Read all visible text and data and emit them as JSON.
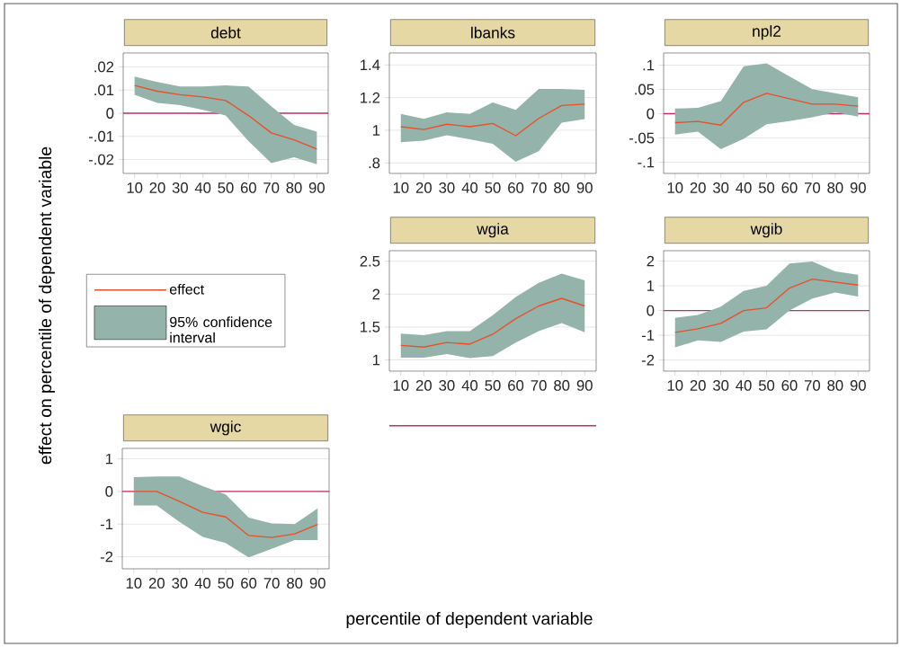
{
  "chart_data": [
    {
      "type": "line",
      "title": "debt",
      "xlabel": "percentile of dependent variable",
      "ylabel": "effect on percentile of dependent variable",
      "legend": "left",
      "grid": "y",
      "x": [
        10,
        20,
        30,
        40,
        50,
        60,
        70,
        80,
        90
      ],
      "xlim": [
        5,
        95
      ],
      "xticks": [
        10,
        20,
        30,
        40,
        50,
        60,
        70,
        80,
        90
      ],
      "ylim": [
        -0.026,
        0.026
      ],
      "yticks": [
        {
          "value": -0.02,
          "label": "-.02"
        },
        {
          "value": -0.01,
          "label": "-.01"
        },
        0,
        {
          "value": 0.01,
          "label": ".01"
        },
        {
          "value": 0.02,
          "label": ".02"
        }
      ],
      "series": [
        {
          "name": "effect",
          "color": "#e8502a",
          "values": [
            0.012,
            0.0095,
            0.008,
            0.007,
            0.0055,
            -0.001,
            -0.0085,
            -0.0115,
            -0.0155
          ]
        },
        {
          "name": "95% confidence interval",
          "color": "#93b3ab",
          "values": [
            null,
            null,
            null,
            null,
            null,
            null,
            null,
            null,
            null
          ],
          "lower": [
            0.008,
            0.0045,
            0.0035,
            0.0015,
            -0.001,
            -0.012,
            -0.0215,
            -0.019,
            -0.022
          ],
          "upper": [
            0.0158,
            0.0135,
            0.0115,
            0.0115,
            0.012,
            0.0115,
            0.003,
            -0.005,
            -0.008
          ]
        }
      ],
      "ref_lines": [
        {
          "axis": "y",
          "value": 0,
          "color": "#c0306a"
        }
      ]
    },
    {
      "type": "line",
      "title": "lbanks",
      "grid": "y",
      "x": [
        10,
        20,
        30,
        40,
        50,
        60,
        70,
        80,
        90
      ],
      "xlim": [
        5,
        95
      ],
      "xticks": [
        10,
        20,
        30,
        40,
        50,
        60,
        70,
        80,
        90
      ],
      "ylim": [
        0.736,
        1.473
      ],
      "yticks": [
        {
          "value": 0.8,
          "label": ".8"
        },
        1,
        1.2,
        1.4
      ],
      "series": [
        {
          "color": "#e8502a",
          "values": [
            1.022,
            1.005,
            1.037,
            1.022,
            1.042,
            0.967,
            1.073,
            1.152,
            1.16
          ]
        },
        {
          "color": "#93b3ab",
          "values": [
            null,
            null,
            null,
            null,
            null,
            null,
            null,
            null,
            null
          ],
          "lower": [
            0.927,
            0.936,
            0.969,
            0.945,
            0.917,
            0.807,
            0.872,
            1.046,
            1.068
          ],
          "upper": [
            1.1,
            1.07,
            1.11,
            1.1,
            1.17,
            1.125,
            1.253,
            1.253,
            1.248
          ]
        }
      ]
    },
    {
      "type": "line",
      "title": "npl2",
      "grid": "y",
      "x": [
        10,
        20,
        30,
        40,
        50,
        60,
        70,
        80,
        90
      ],
      "xlim": [
        5,
        95
      ],
      "xticks": [
        10,
        20,
        30,
        40,
        50,
        60,
        70,
        80,
        90
      ],
      "ylim": [
        -0.123,
        0.125
      ],
      "yticks": [
        {
          "value": -0.1,
          "label": "-.1"
        },
        {
          "value": -0.05,
          "label": "-.05"
        },
        0,
        {
          "value": 0.05,
          "label": ".05"
        },
        {
          "value": 0.1,
          "label": ".1"
        }
      ],
      "series": [
        {
          "color": "#e8502a",
          "values": [
            -0.0185,
            -0.016,
            -0.0235,
            0.0235,
            0.042,
            0.031,
            0.0198,
            0.0198,
            0.0155
          ]
        },
        {
          "color": "#93b3ab",
          "values": [
            null,
            null,
            null,
            null,
            null,
            null,
            null,
            null,
            null
          ],
          "lower": [
            -0.043,
            -0.037,
            -0.073,
            -0.052,
            -0.0216,
            -0.0154,
            -0.0074,
            0.003,
            -0.006
          ],
          "upper": [
            0.0105,
            0.012,
            0.026,
            0.0975,
            0.1037,
            0.077,
            0.0506,
            0.042,
            0.034
          ]
        }
      ],
      "ref_lines": [
        {
          "axis": "y",
          "value": 0,
          "color": "#c0306a"
        }
      ]
    },
    {
      "type": "line",
      "title": "wgia",
      "grid": "y",
      "x": [
        10,
        20,
        30,
        40,
        50,
        60,
        70,
        80,
        90
      ],
      "xlim": [
        5,
        95
      ],
      "xticks": [
        10,
        20,
        30,
        40,
        50,
        60,
        70,
        80,
        90
      ],
      "ylim": [
        0.83,
        2.66
      ],
      "yticks": [
        1,
        1.5,
        2,
        2.5
      ],
      "series": [
        {
          "color": "#e8502a",
          "values": [
            1.22,
            1.195,
            1.264,
            1.24,
            1.39,
            1.627,
            1.82,
            1.936,
            1.82
          ]
        },
        {
          "color": "#93b3ab",
          "values": [
            null,
            null,
            null,
            null,
            null,
            null,
            null,
            null,
            null
          ],
          "lower": [
            1.036,
            1.036,
            1.09,
            1.027,
            1.06,
            1.264,
            1.436,
            1.56,
            1.42
          ],
          "upper": [
            1.4,
            1.377,
            1.436,
            1.436,
            1.68,
            1.955,
            2.17,
            2.31,
            2.21
          ]
        }
      ],
      "ref_lines": [
        {
          "axis": "y",
          "value": 0,
          "color": "#c0306a"
        }
      ]
    },
    {
      "type": "line",
      "title": "wgib",
      "grid": "y",
      "x": [
        10,
        20,
        30,
        40,
        50,
        60,
        70,
        80,
        90
      ],
      "xlim": [
        5,
        95
      ],
      "xticks": [
        10,
        20,
        30,
        40,
        50,
        60,
        70,
        80,
        90
      ],
      "ylim": [
        -2.45,
        2.42
      ],
      "yticks": [
        -2,
        -1,
        0,
        1,
        2
      ],
      "series": [
        {
          "color": "#e8502a",
          "values": [
            -0.885,
            -0.74,
            -0.52,
            0,
            0.11,
            0.91,
            1.27,
            1.15,
            1.03
          ]
        },
        {
          "color": "#93b3ab",
          "values": [
            null,
            null,
            null,
            null,
            null,
            null,
            null,
            null,
            null
          ],
          "lower": [
            -1.49,
            -1.21,
            -1.27,
            -0.85,
            -0.76,
            0,
            0.485,
            0.727,
            0.57
          ],
          "upper": [
            -0.3,
            -0.18,
            0.16,
            0.79,
            1.0,
            1.9,
            1.98,
            1.58,
            1.45
          ]
        }
      ],
      "ref_lines": [
        {
          "axis": "y",
          "value": 0,
          "color": "#c0306a"
        }
      ]
    },
    {
      "type": "line",
      "title": "wgic",
      "grid": "y",
      "x": [
        10,
        20,
        30,
        40,
        50,
        60,
        70,
        80,
        90
      ],
      "xlim": [
        5,
        95
      ],
      "xticks": [
        10,
        20,
        30,
        40,
        50,
        60,
        70,
        80,
        90
      ],
      "ylim": [
        -2.37,
        1.32
      ],
      "yticks": [
        -2,
        -1,
        0,
        1
      ],
      "series": [
        {
          "color": "#e8502a",
          "values": [
            0,
            0,
            -0.31,
            -0.64,
            -0.78,
            -1.35,
            -1.41,
            -1.3,
            -1.01
          ]
        },
        {
          "color": "#93b3ab",
          "values": [
            null,
            null,
            null,
            null,
            null,
            null,
            null,
            null,
            null
          ],
          "lower": [
            -0.43,
            -0.43,
            -0.94,
            -1.39,
            -1.58,
            -2.02,
            -1.76,
            -1.49,
            -1.49
          ],
          "upper": [
            0.44,
            0.46,
            0.46,
            0.165,
            -0.09,
            -0.8,
            -0.98,
            -1.0,
            -0.52
          ]
        }
      ],
      "ref_lines": [
        {
          "axis": "y",
          "value": 0,
          "color": "#c0306a"
        }
      ]
    }
  ]
}
